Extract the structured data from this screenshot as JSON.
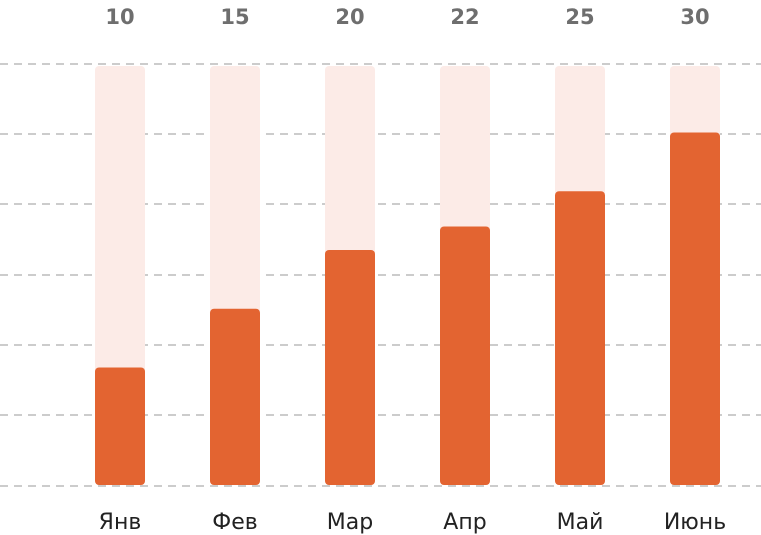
{
  "chart_data": {
    "type": "bar",
    "categories": [
      "Янв",
      "Фев",
      "Мар",
      "Апр",
      "Май",
      "Июнь"
    ],
    "values": [
      10,
      15,
      20,
      22,
      25,
      30
    ],
    "value_labels": [
      "10",
      "15",
      "20",
      "22",
      "25",
      "30"
    ],
    "ylim": [
      0,
      36
    ],
    "grid": true,
    "legend": "none",
    "title": "",
    "xlabel": "",
    "ylabel": ""
  },
  "colors": {
    "bar": "#e36431",
    "track": "#fcebe7",
    "grid": "#9a9a9a",
    "value_text": "#6e6e6e",
    "category_text": "#222222"
  }
}
